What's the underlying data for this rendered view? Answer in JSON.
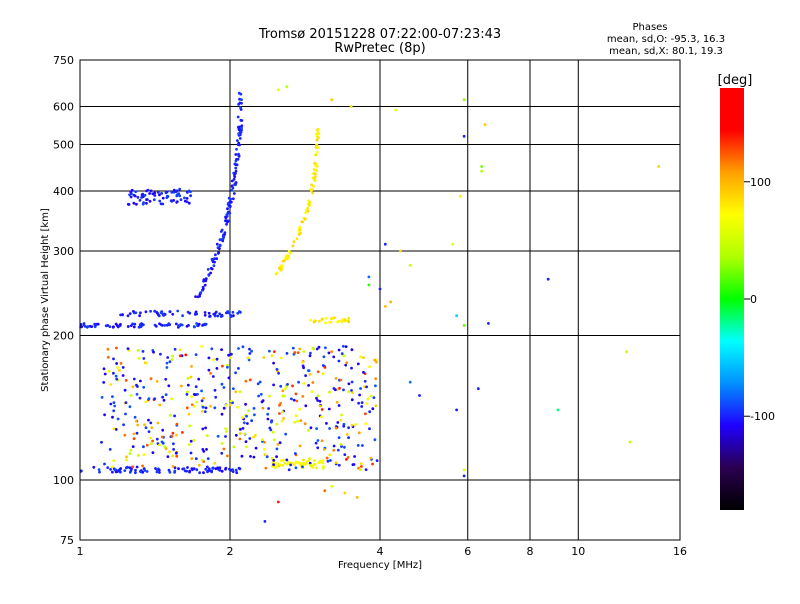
{
  "chart_data": {
    "type": "scatter",
    "title": "Tromsø 20151228 07:22:00-07:23:43",
    "subtitle": "RwPretec (8p)",
    "xlabel": "Frequency [MHz]",
    "ylabel": "Stationary phase Virtual Height [km]",
    "xscale": "log",
    "yscale": "log",
    "xlim": [
      1,
      16
    ],
    "ylim": [
      75,
      750
    ],
    "grid": true,
    "xticks": [
      1,
      2,
      4,
      6,
      8,
      10,
      16
    ],
    "yticks": [
      75,
      100,
      200,
      300,
      400,
      500,
      600,
      750
    ],
    "info": {
      "header": "Phases",
      "line1": "mean, sd,O: -95.3, 16.3",
      "line2": "mean, sd,X:  80.1, 19.3"
    },
    "colorbar": {
      "label": "[deg]",
      "range": [
        -180,
        180
      ],
      "ticks": [
        -100,
        0,
        100
      ],
      "palette": [
        "#000000",
        "#2a0050",
        "#2000ff",
        "#0090ff",
        "#00ffff",
        "#00ff00",
        "#b0ff00",
        "#ffff00",
        "#ffa000",
        "#ff0000",
        "#ff0000"
      ]
    },
    "traces": [
      {
        "name": "o-low",
        "phase": -100,
        "f0": 1.0,
        "f1": 2.1,
        "h": 105,
        "jitter": 1.5,
        "count": 90
      },
      {
        "name": "o-low2",
        "phase": -100,
        "f0": 1.0,
        "f1": 1.8,
        "h": 210,
        "jitter": 2,
        "count": 70
      },
      {
        "name": "o-mid",
        "phase": -100,
        "f0": 1.2,
        "f1": 2.1,
        "h": 222,
        "jitter": 3,
        "count": 60
      },
      {
        "name": "o-high",
        "phase": -100,
        "f0": 1.25,
        "f1": 1.7,
        "h": 390,
        "jitter": 15,
        "count": 70
      },
      {
        "name": "x-low",
        "phase": 70,
        "f0": 2.4,
        "f1": 3.1,
        "h": 108,
        "jitter": 2,
        "count": 45
      },
      {
        "name": "x-low2",
        "phase": 80,
        "f0": 2.9,
        "f1": 3.5,
        "h": 215,
        "jitter": 3,
        "count": 30
      }
    ],
    "cusps": [
      {
        "name": "o-cusp",
        "phase": -100,
        "fc": 2.1,
        "hmin": 240,
        "hmax": 640,
        "count": 140
      },
      {
        "name": "x-cusp",
        "phase": 80,
        "fc": 3.0,
        "hmin": 265,
        "hmax": 540,
        "count": 90
      }
    ],
    "scatter_region": {
      "f0": 1.1,
      "f1": 3.95,
      "h0": 105,
      "h1": 190,
      "count": 520
    },
    "sparse_points": [
      [
        2.5,
        650,
        60
      ],
      [
        2.6,
        660,
        40
      ],
      [
        3.2,
        620,
        90
      ],
      [
        3.5,
        600,
        80
      ],
      [
        4.3,
        590,
        60
      ],
      [
        5.9,
        620,
        30
      ],
      [
        5.9,
        520,
        -100
      ],
      [
        6.5,
        550,
        90
      ],
      [
        6.4,
        450,
        20
      ],
      [
        6.4,
        440,
        40
      ],
      [
        14.5,
        450,
        90
      ],
      [
        5.8,
        390,
        80
      ],
      [
        5.6,
        310,
        60
      ],
      [
        4.1,
        310,
        -100
      ],
      [
        4.4,
        300,
        90
      ],
      [
        8.7,
        262,
        -100
      ],
      [
        4.6,
        280,
        40
      ],
      [
        4.0,
        250,
        -100
      ],
      [
        3.8,
        265,
        -80
      ],
      [
        3.8,
        255,
        10
      ],
      [
        4.2,
        235,
        100
      ],
      [
        4.1,
        230,
        100
      ],
      [
        5.7,
        220,
        -50
      ],
      [
        5.9,
        210,
        20
      ],
      [
        6.6,
        212,
        -100
      ],
      [
        12.5,
        185,
        40
      ],
      [
        1.5,
        180,
        -100
      ],
      [
        1.45,
        183,
        -100
      ],
      [
        6.3,
        155,
        -100
      ],
      [
        4.8,
        150,
        -100
      ],
      [
        4.6,
        160,
        -80
      ],
      [
        5.7,
        140,
        -100
      ],
      [
        9.1,
        140,
        -20
      ],
      [
        12.7,
        120,
        40
      ],
      [
        5.9,
        105,
        60
      ],
      [
        5.9,
        102,
        -100
      ],
      [
        3.1,
        95,
        120
      ],
      [
        3.4,
        94,
        90
      ],
      [
        2.5,
        90,
        140
      ],
      [
        2.35,
        82,
        -100
      ],
      [
        3.2,
        97,
        60
      ],
      [
        3.6,
        92,
        100
      ]
    ]
  }
}
